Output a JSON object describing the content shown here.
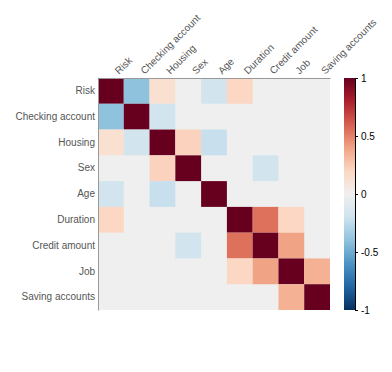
{
  "chart_data": {
    "type": "heatmap",
    "categories": [
      "Risk",
      "Checking account",
      "Housing",
      "Sex",
      "Age",
      "Duration",
      "Credit amount",
      "Job",
      "Saving accounts"
    ],
    "values": [
      [
        1.0,
        -0.4,
        0.15,
        null,
        -0.18,
        0.2,
        null,
        null,
        null
      ],
      [
        -0.4,
        1.0,
        -0.18,
        null,
        null,
        null,
        null,
        null,
        null
      ],
      [
        0.15,
        -0.18,
        1.0,
        0.22,
        -0.22,
        null,
        null,
        null,
        null
      ],
      [
        null,
        null,
        0.22,
        1.0,
        null,
        null,
        -0.18,
        null,
        null
      ],
      [
        -0.18,
        null,
        -0.22,
        null,
        1.0,
        null,
        null,
        null,
        null
      ],
      [
        0.2,
        null,
        null,
        null,
        null,
        1.0,
        0.55,
        0.2,
        null
      ],
      [
        null,
        null,
        null,
        -0.18,
        null,
        0.55,
        1.0,
        0.4,
        null
      ],
      [
        null,
        null,
        null,
        null,
        null,
        0.2,
        0.4,
        1.0,
        0.35
      ],
      [
        null,
        null,
        null,
        null,
        null,
        null,
        null,
        0.35,
        1.0
      ]
    ],
    "zlim": [
      -1,
      1
    ],
    "zticks": [
      1,
      0.5,
      0,
      -0.5,
      -1
    ]
  }
}
